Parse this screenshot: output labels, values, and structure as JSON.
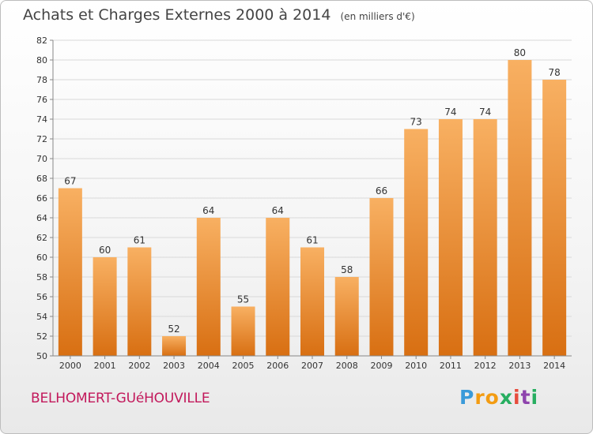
{
  "header": {
    "title": "Achats et Charges Externes 2000 à 2014",
    "unit": "(en milliers d'€)"
  },
  "footer": {
    "commune": "BELHOMERT-GUéHOUVILLE",
    "logo_letters": [
      "P",
      "r",
      "o",
      "x",
      "i",
      "t",
      "i"
    ],
    "logo_colors": [
      "#3a9ad9",
      "#f39c12",
      "#f39c12",
      "#27ae60",
      "#e74c3c",
      "#8e44ad",
      "#27ae60"
    ]
  },
  "chart_data": {
    "type": "bar",
    "title": "Achats et Charges Externes 2000 à 2014",
    "xlabel": "",
    "ylabel": "",
    "categories": [
      "2000",
      "2001",
      "2002",
      "2003",
      "2004",
      "2005",
      "2006",
      "2007",
      "2008",
      "2009",
      "2010",
      "2011",
      "2012",
      "2013",
      "2014"
    ],
    "values": [
      67,
      60,
      61,
      52,
      64,
      55,
      64,
      61,
      58,
      66,
      73,
      74,
      74,
      80,
      78
    ],
    "ylim": [
      50,
      82
    ],
    "yticks": [
      50,
      52,
      54,
      56,
      58,
      60,
      62,
      64,
      66,
      68,
      70,
      72,
      74,
      76,
      78,
      80,
      82
    ],
    "grid": true,
    "bar_color": "#f0922e",
    "bar_color_light": "#f8b062",
    "bar_color_dark": "#d86f12"
  }
}
